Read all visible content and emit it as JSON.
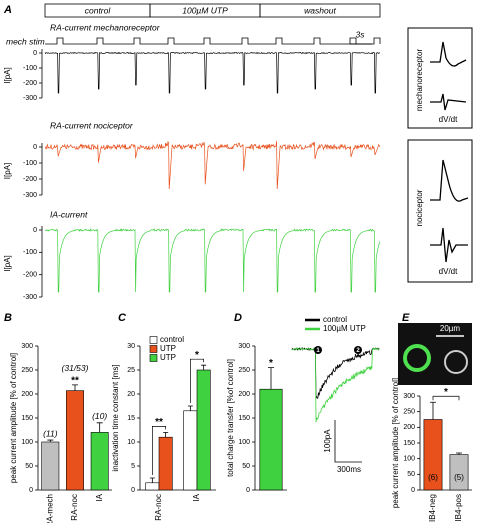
{
  "panel_a": {
    "label": "A",
    "conditions": [
      "control",
      "100µM UTP",
      "washout"
    ],
    "stim_label": "mech stim",
    "time_scale": "3s",
    "traces": [
      {
        "title": "RA-current mechanoreceptor",
        "color": "#000000",
        "ylabel": "I[pA]",
        "ylim": [
          -300,
          0
        ],
        "yticks": [
          0,
          -100,
          -200,
          -300
        ]
      },
      {
        "title": "RA-current nociceptor",
        "color": "#e8501c",
        "ylabel": "I[pA]",
        "ylim": [
          -300,
          0
        ],
        "yticks": [
          0,
          -100,
          -200,
          -300
        ]
      },
      {
        "title": "IA-current",
        "color": "#3fd13f",
        "ylabel": "I[pA]",
        "ylim": [
          -300,
          0
        ],
        "yticks": [
          0,
          -100,
          -200,
          -300
        ]
      }
    ],
    "insets": [
      {
        "cell": "mechanoreceptor",
        "derivative": "dV/dt"
      },
      {
        "cell": "nociceptor",
        "derivative": "dV/dt"
      }
    ]
  },
  "chart_data": [
    {
      "label": "B",
      "type": "bar",
      "ylabel": "peak current amplitude [% of control]",
      "categories": [
        "RA-mech",
        "RA-noc",
        "IA"
      ],
      "values": [
        100,
        207,
        120
      ],
      "errors": [
        4,
        12,
        20
      ],
      "colors": [
        "#bfbfbf",
        "#e8501c",
        "#3fd13f"
      ],
      "n_labels": [
        "(11)",
        "(31/53)",
        "(10)"
      ],
      "significance": [
        null,
        "**",
        null
      ],
      "ylim": [
        0,
        300
      ],
      "yticks": [
        0,
        50,
        100,
        150,
        200,
        250,
        300
      ]
    },
    {
      "label": "C",
      "type": "grouped_bar",
      "ylabel": "inactivation time constant [ms]",
      "categories": [
        "RA-noc",
        "IA"
      ],
      "series": [
        {
          "name": "control",
          "color": "#ffffff",
          "values": [
            1.5,
            16.5
          ],
          "errors": [
            1,
            1
          ]
        },
        {
          "name": "UTP",
          "color": "#e8501c",
          "values": [
            11,
            null
          ],
          "errors": [
            1,
            null
          ]
        },
        {
          "name": "UTP",
          "color": "#3fd13f",
          "values": [
            null,
            25
          ],
          "errors": [
            null,
            1
          ]
        }
      ],
      "group_significance": [
        "**",
        "*"
      ],
      "ylim": [
        0,
        30
      ],
      "yticks": [
        0,
        5,
        10,
        15,
        20,
        25,
        30
      ]
    },
    {
      "label": "D",
      "type": "bar",
      "ylabel": "total charge transfer [%of control]",
      "categories": [
        null
      ],
      "values": [
        210
      ],
      "errors": [
        45
      ],
      "colors": [
        "#3fd13f"
      ],
      "significance": [
        "*"
      ],
      "ylim": [
        0,
        300
      ],
      "yticks": [
        0,
        50,
        100,
        150,
        200,
        250,
        300
      ],
      "trace": {
        "series": [
          {
            "name": "control",
            "color": "#000000"
          },
          {
            "name": "100µM UTP",
            "color": "#3fd13f"
          }
        ],
        "markers": [
          "1",
          "2"
        ],
        "scale_y": "100pA",
        "scale_x": "300ms"
      }
    },
    {
      "label": "E",
      "type": "bar",
      "ylabel": "peak current amplitude [% of control]",
      "categories": [
        "IB4-neg",
        "IB4-pos"
      ],
      "values": [
        225,
        113
      ],
      "errors": [
        55,
        5
      ],
      "colors": [
        "#e8501c",
        "#bfbfbf"
      ],
      "n_labels": [
        "(6)",
        "(5)"
      ],
      "bracket_significance": "*",
      "scale_bar": "20µm",
      "ylim": [
        0,
        300
      ],
      "yticks": [
        0,
        50,
        100,
        150,
        200,
        250,
        300
      ]
    }
  ]
}
